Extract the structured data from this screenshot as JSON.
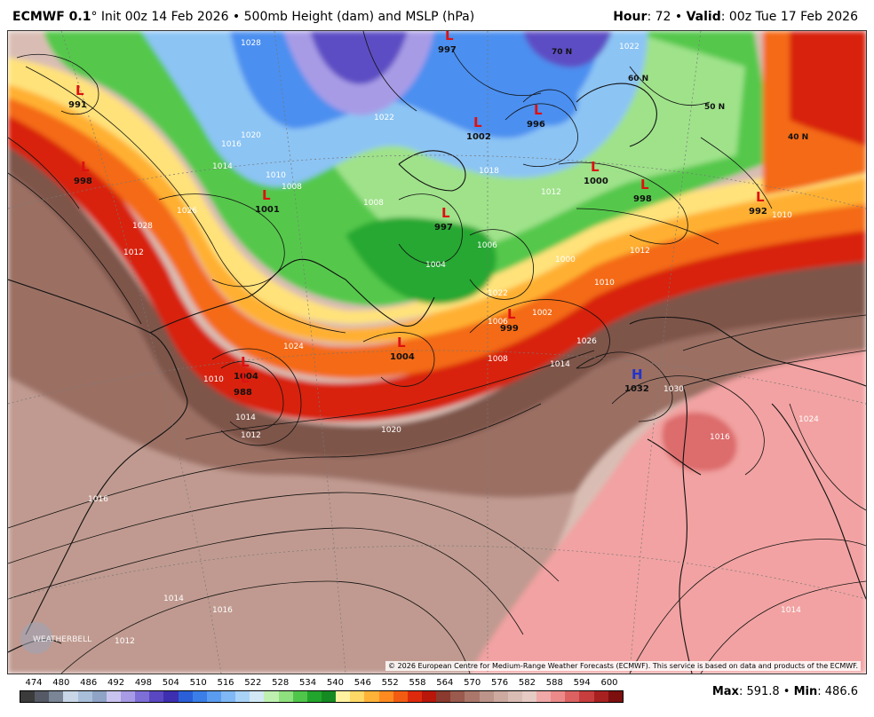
{
  "header": {
    "model": "ECMWF 0.1",
    "degree": "°",
    "run_info": " Init 00z 14 Feb 2026 • 500mb Height (dam) and MSLP (hPa)",
    "hour_label": "Hour",
    "hour_value": ": 72 • ",
    "valid_label": "Valid",
    "valid_value": ": 00z Tue 17 Feb 2026"
  },
  "credit": "© 2026 European Centre for Medium-Range Weather Forecasts (ECMWF). This service is based on data and products of the ECMWF.",
  "logo_text": "WEATHERBELL",
  "stats": {
    "max_label": "Max",
    "max_value": ": 591.8 • ",
    "min_label": "Min",
    "min_value": ": 486.6"
  },
  "colorbar": {
    "ticks": [
      "474",
      "480",
      "486",
      "492",
      "498",
      "504",
      "510",
      "516",
      "522",
      "528",
      "534",
      "540",
      "546",
      "552",
      "558",
      "564",
      "570",
      "576",
      "582",
      "588",
      "594",
      "600"
    ],
    "colors": [
      "#3b3b3b",
      "#555a66",
      "#7a8596",
      "#c8d6e8",
      "#a9bfd9",
      "#8ea3c6",
      "#c9c3ef",
      "#a79be6",
      "#7d6fd6",
      "#5a48c2",
      "#3d2fb0",
      "#2a5fd8",
      "#3b7ee8",
      "#5a9cf0",
      "#7fb8f5",
      "#a9d2f7",
      "#d2e8f5",
      "#bff0b0",
      "#8fe07e",
      "#4fc64a",
      "#22a52c",
      "#168a22",
      "#fff2a0",
      "#ffd866",
      "#ffb238",
      "#ff8a1f",
      "#f25c12",
      "#de2a0c",
      "#b8170a",
      "#8a3a2e",
      "#9a5a4e",
      "#ab776b",
      "#bd948a",
      "#ccaaa0",
      "#d9bdb4",
      "#e6cbc4",
      "#f0a8a8",
      "#ec8a8a",
      "#dc6262",
      "#c83d3d",
      "#a82121",
      "#7d0f0f"
    ]
  },
  "map": {
    "colors": {
      "ocean_low": "#d9bdb4",
      "ocean_mid": "#c09a90",
      "brown_dark": "#7e5448",
      "brown_mid": "#9b7064",
      "red_band": "#d8230c",
      "orange_band": "#f46a14",
      "gold_band": "#ffb030",
      "yellow_band": "#ffe27a",
      "green_light": "#9fe28a",
      "green_mid": "#55c84c",
      "green_dark": "#27a832",
      "blue_light": "#8cc4f4",
      "blue_mid": "#4c8ff0",
      "purple": "#5d4ec4",
      "purple_light": "#a79be6",
      "pink": "#f2a2a2",
      "pink_dark": "#dd6c6c",
      "low_red": "#dd1111",
      "high_blue": "#2233cc"
    },
    "lows": [
      {
        "letter": "L",
        "value": "991"
      },
      {
        "letter": "L",
        "value": "998"
      },
      {
        "letter": "L",
        "value": "1001"
      },
      {
        "letter": "L",
        "value": "997"
      },
      {
        "letter": "L",
        "value": "997"
      },
      {
        "letter": "L",
        "value": "1002"
      },
      {
        "letter": "L",
        "value": "996"
      },
      {
        "letter": "L",
        "value": "1000"
      },
      {
        "letter": "L",
        "value": "998"
      },
      {
        "letter": "L",
        "value": "992"
      },
      {
        "letter": "L",
        "value": "1004"
      },
      {
        "letter": "L",
        "value": "999"
      },
      {
        "letter": "L",
        "value": "1004"
      },
      {
        "letter": "L",
        "value": "988"
      }
    ],
    "highs": [
      {
        "letter": "H",
        "value": "1032"
      }
    ],
    "isobar_labels": [
      "1028",
      "1022",
      "1020",
      "1016",
      "1014",
      "1010",
      "1008",
      "1008",
      "1006",
      "1004",
      "1012",
      "1018",
      "1026",
      "1028",
      "1022",
      "1010",
      "1012",
      "1022",
      "1024",
      "1020",
      "1014",
      "1012",
      "1010",
      "1026",
      "1030",
      "1024",
      "1012",
      "1016",
      "1014",
      "1016",
      "1014",
      "1012",
      "1000",
      "1002",
      "1006",
      "1008",
      "1010",
      "1012",
      "1014",
      "1016"
    ],
    "lat_labels": [
      "70 N",
      "60 N",
      "50 N",
      "40 N"
    ]
  }
}
